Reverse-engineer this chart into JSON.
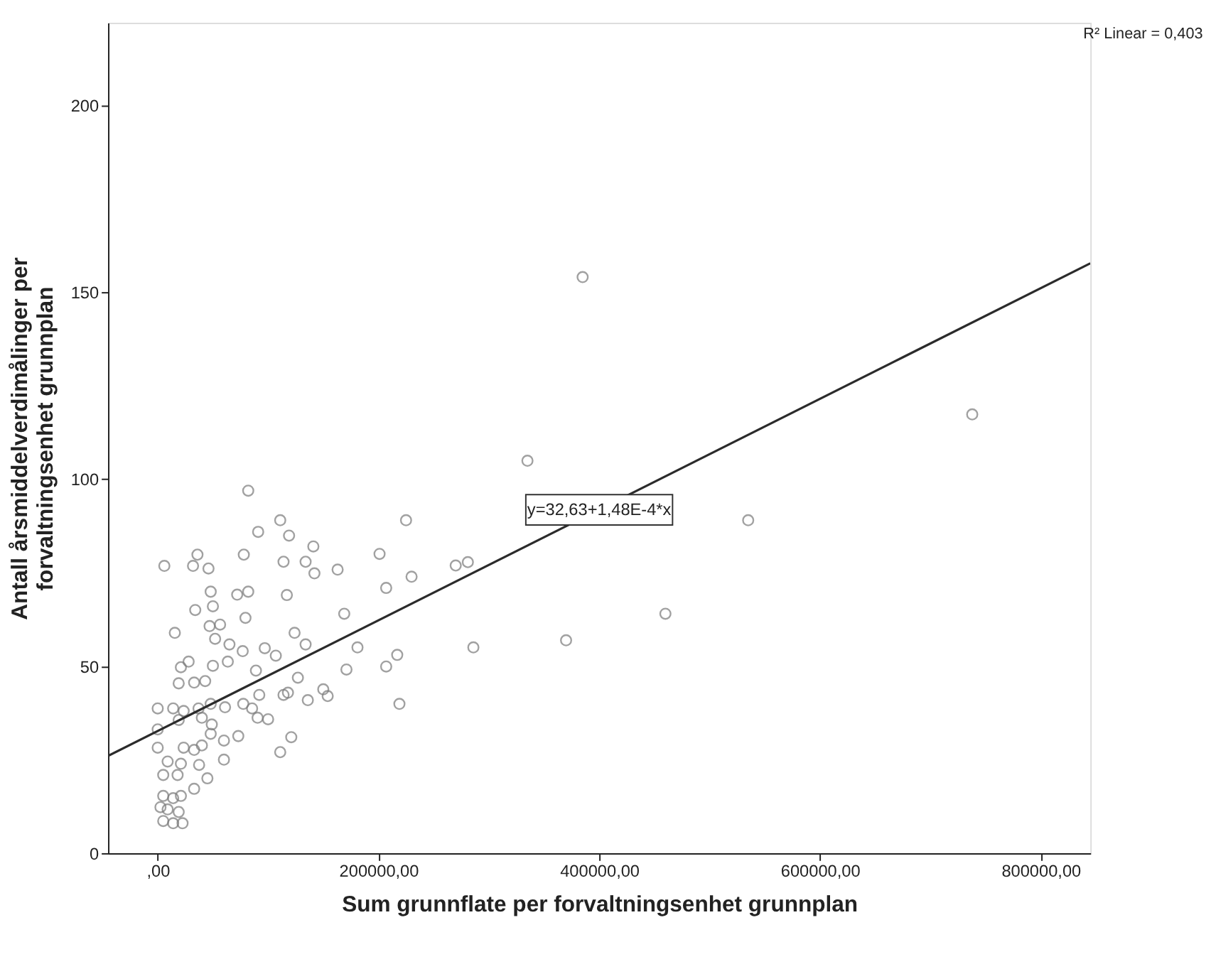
{
  "chart_data": {
    "type": "scatter",
    "xlabel": "Sum grunnflate per forvaltningsenhet grunnplan",
    "ylabel": "Antall årsmiddelverdimålinger per forvaltningsenhet grunnplan",
    "xlim": [
      -45000,
      845000
    ],
    "ylim": [
      0,
      222
    ],
    "xticks": [
      {
        "value": 0,
        "label": ",00"
      },
      {
        "value": 200000,
        "label": "200000,00"
      },
      {
        "value": 400000,
        "label": "400000,00"
      },
      {
        "value": 600000,
        "label": "600000,00"
      },
      {
        "value": 800000,
        "label": "800000,00"
      }
    ],
    "yticks": [
      0,
      50,
      100,
      150,
      200
    ],
    "grid": false,
    "annotations": [
      "R² Linear = 0,403",
      {
        "text": "y=32,63+1,48E-4*x",
        "x": 400000,
        "y": 91.8
      }
    ],
    "series": [
      {
        "marker": "circle",
        "color": "#7a7a7a",
        "x": [
          385000,
          335000,
          738000,
          535000,
          460000,
          370000,
          201000,
          207000,
          230000,
          169000,
          171000,
          181000,
          207000,
          217000,
          82000,
          111000,
          225000,
          91000,
          119000,
          141000,
          36000,
          78000,
          6000,
          32000,
          46000,
          114000,
          134000,
          142000,
          163000,
          270000,
          281000,
          48000,
          72000,
          82000,
          117000,
          50000,
          34000,
          79500,
          47000,
          56500,
          15500,
          52000,
          124000,
          65000,
          134000,
          77000,
          97000,
          107000,
          286000,
          63500,
          28000,
          21000,
          50000,
          89000,
          127000,
          19000,
          33000,
          43000,
          150000,
          154000,
          114000,
          118000,
          136000,
          219000,
          0,
          14000,
          23500,
          37000,
          48000,
          61000,
          77500,
          85500,
          92000,
          100000,
          90500,
          19000,
          0,
          40000,
          49000,
          48000,
          73000,
          60000,
          121000,
          111000,
          0,
          23500,
          33000,
          40000,
          9000,
          21000,
          37500,
          60000,
          5000,
          18000,
          33000,
          45000,
          5000,
          14000,
          21000,
          2500,
          9000,
          19000,
          5000,
          14000,
          22500
        ],
        "values": [
          154.0,
          104.9,
          117.3,
          89.0,
          64.0,
          56.9,
          80.0,
          70.9,
          73.9,
          64.0,
          49.1,
          55.0,
          49.9,
          53.0,
          96.9,
          89.0,
          89.0,
          85.9,
          84.9,
          82.0,
          79.8,
          79.8,
          76.8,
          76.8,
          76.1,
          77.9,
          77.9,
          74.8,
          75.8,
          76.9,
          77.8,
          69.9,
          69.1,
          69.9,
          69.0,
          66.0,
          65.0,
          62.9,
          60.7,
          61.1,
          58.9,
          57.3,
          58.9,
          55.8,
          55.8,
          54.0,
          54.8,
          52.8,
          55.0,
          51.2,
          51.2,
          49.7,
          50.1,
          48.8,
          46.9,
          45.4,
          45.6,
          46.0,
          43.8,
          42.0,
          42.3,
          42.9,
          40.9,
          39.9,
          38.7,
          38.7,
          38.0,
          38.7,
          39.9,
          39.0,
          39.9,
          38.7,
          42.3,
          35.8,
          36.2,
          35.6,
          33.1,
          36.2,
          34.4,
          31.9,
          31.3,
          30.1,
          31.0,
          27.0,
          28.2,
          28.2,
          27.6,
          28.8,
          24.5,
          23.9,
          23.6,
          25.0,
          20.9,
          20.9,
          17.2,
          20.0,
          15.3,
          14.7,
          15.3,
          12.3,
          11.7,
          11.0,
          8.6,
          8.0,
          8.0
        ]
      },
      {
        "type": "line",
        "color": "#2b2b2b",
        "x": [
          -45000,
          845000
        ],
        "values": [
          26.0,
          157.7
        ]
      }
    ]
  }
}
